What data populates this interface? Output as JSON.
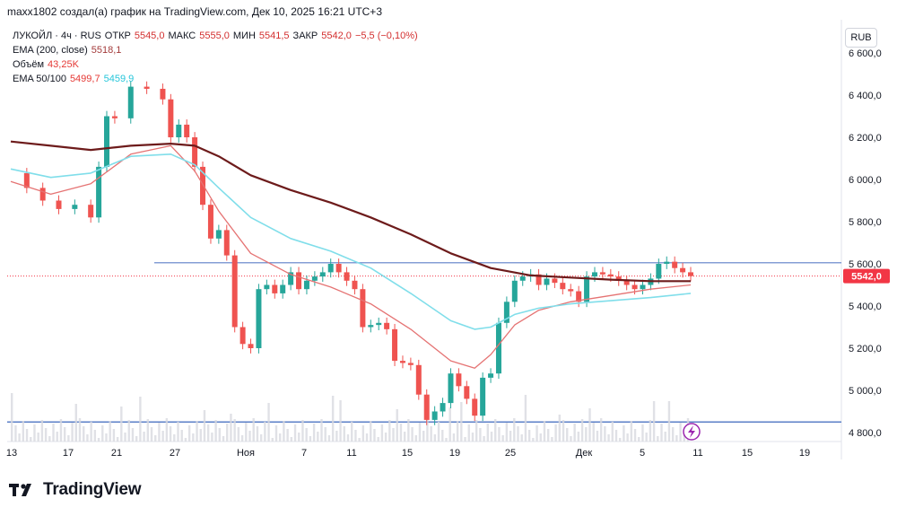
{
  "header": {
    "text": "maxx1802 создал(а) график на TradingView.com, Дек 10, 2025 16:21 UTC+3"
  },
  "legend": {
    "symbol": "ЛУКОЙЛ · 4ч · RUS",
    "open_label": "ОТКР",
    "open_value": "5545,0",
    "high_label": "МАКС",
    "high_value": "5555,0",
    "low_label": "МИН",
    "low_value": "5541,5",
    "close_label": "ЗАКР",
    "close_value": "5542,0",
    "change": "−5,5 (−0,10%)",
    "ema200_label": "EMA (200, close)",
    "ema200_value": "5518,1",
    "volume_label": "Объём",
    "volume_value": "43,25K",
    "ema50_100_label": "EMA 50/100",
    "ema50_value": "5499,7",
    "ema100_value": "5459,9"
  },
  "currency_button": "RUB",
  "last_price_label": "5542,0",
  "logo_text": "TradingView",
  "colors": {
    "up": "#26a69a",
    "down": "#ef5350",
    "ema200": "#6d1b1b",
    "ema50": "#e57373",
    "ema100": "#80deea",
    "hline": "#5b7fc7",
    "last_price": "#f23645"
  },
  "chart_data": {
    "type": "line",
    "y_ticks": [
      "6 600,0",
      "6 400,0",
      "6 200,0",
      "6 000,0",
      "5 800,0",
      "5 600,0",
      "5 400,0",
      "5 200,0",
      "5 000,0",
      "4 800,0"
    ],
    "y_tick_values": [
      6600,
      6400,
      6200,
      6000,
      5800,
      5600,
      5400,
      5200,
      5000,
      4800
    ],
    "ylim": [
      4790,
      6650
    ],
    "x_ticks": [
      "13",
      "17",
      "21",
      "27",
      "Ноя",
      "7",
      "11",
      "15",
      "19",
      "25",
      "Дек",
      "5",
      "11",
      "15",
      "19"
    ],
    "horizontal_levels": [
      5605,
      4850
    ],
    "last_price": 5542,
    "series": [
      {
        "name": "ЛУКОЙЛ",
        "role": "price",
        "points": [
          [
            0,
            6030
          ],
          [
            2,
            5960
          ],
          [
            4,
            5900
          ],
          [
            6,
            5860
          ],
          [
            8,
            5880
          ],
          [
            10,
            5820
          ],
          [
            11,
            6060
          ],
          [
            12,
            6300
          ],
          [
            13,
            6290
          ],
          [
            15,
            6440
          ],
          [
            17,
            6430
          ],
          [
            19,
            6380
          ],
          [
            20,
            6200
          ],
          [
            21,
            6260
          ],
          [
            22,
            6200
          ],
          [
            23,
            6060
          ],
          [
            24,
            5880
          ],
          [
            25,
            5720
          ],
          [
            26,
            5760
          ],
          [
            27,
            5640
          ],
          [
            28,
            5300
          ],
          [
            29,
            5220
          ],
          [
            30,
            5200
          ],
          [
            31,
            5480
          ],
          [
            32,
            5500
          ],
          [
            33,
            5460
          ],
          [
            34,
            5500
          ],
          [
            35,
            5560
          ],
          [
            36,
            5480
          ],
          [
            37,
            5520
          ],
          [
            38,
            5540
          ],
          [
            39,
            5560
          ],
          [
            40,
            5600
          ],
          [
            41,
            5560
          ],
          [
            42,
            5520
          ],
          [
            43,
            5480
          ],
          [
            44,
            5300
          ],
          [
            45,
            5310
          ],
          [
            46,
            5320
          ],
          [
            47,
            5290
          ],
          [
            48,
            5140
          ],
          [
            49,
            5130
          ],
          [
            50,
            5120
          ],
          [
            51,
            4980
          ],
          [
            52,
            4860
          ],
          [
            53,
            4900
          ],
          [
            54,
            4940
          ],
          [
            55,
            5080
          ],
          [
            56,
            5020
          ],
          [
            57,
            4960
          ],
          [
            58,
            4880
          ],
          [
            59,
            5060
          ],
          [
            60,
            5080
          ],
          [
            61,
            5320
          ],
          [
            62,
            5420
          ],
          [
            63,
            5520
          ],
          [
            64,
            5540
          ],
          [
            65,
            5550
          ],
          [
            66,
            5500
          ],
          [
            67,
            5530
          ],
          [
            68,
            5510
          ],
          [
            69,
            5480
          ],
          [
            70,
            5470
          ],
          [
            71,
            5420
          ],
          [
            72,
            5540
          ],
          [
            73,
            5560
          ],
          [
            74,
            5550
          ],
          [
            75,
            5540
          ],
          [
            76,
            5520
          ],
          [
            77,
            5500
          ],
          [
            78,
            5480
          ],
          [
            79,
            5500
          ],
          [
            80,
            5530
          ],
          [
            81,
            5600
          ],
          [
            82,
            5610
          ],
          [
            83,
            5580
          ],
          [
            84,
            5560
          ],
          [
            85,
            5542
          ]
        ]
      },
      {
        "name": "EMA (200, close)",
        "points": [
          [
            0,
            6180
          ],
          [
            5,
            6160
          ],
          [
            10,
            6140
          ],
          [
            15,
            6160
          ],
          [
            20,
            6170
          ],
          [
            23,
            6160
          ],
          [
            26,
            6110
          ],
          [
            30,
            6020
          ],
          [
            35,
            5950
          ],
          [
            40,
            5890
          ],
          [
            45,
            5820
          ],
          [
            50,
            5740
          ],
          [
            55,
            5650
          ],
          [
            60,
            5580
          ],
          [
            65,
            5545
          ],
          [
            70,
            5535
          ],
          [
            75,
            5525
          ],
          [
            80,
            5518
          ],
          [
            85,
            5518
          ]
        ]
      },
      {
        "name": "EMA 50",
        "points": [
          [
            0,
            5990
          ],
          [
            5,
            5930
          ],
          [
            10,
            5980
          ],
          [
            15,
            6120
          ],
          [
            20,
            6160
          ],
          [
            23,
            6040
          ],
          [
            26,
            5850
          ],
          [
            30,
            5650
          ],
          [
            35,
            5550
          ],
          [
            40,
            5490
          ],
          [
            45,
            5410
          ],
          [
            50,
            5290
          ],
          [
            55,
            5140
          ],
          [
            58,
            5105
          ],
          [
            60,
            5170
          ],
          [
            63,
            5310
          ],
          [
            66,
            5380
          ],
          [
            70,
            5420
          ],
          [
            75,
            5450
          ],
          [
            80,
            5480
          ],
          [
            85,
            5500
          ]
        ]
      },
      {
        "name": "EMA 100",
        "points": [
          [
            0,
            6050
          ],
          [
            5,
            6010
          ],
          [
            10,
            6030
          ],
          [
            15,
            6110
          ],
          [
            20,
            6120
          ],
          [
            23,
            6070
          ],
          [
            26,
            5960
          ],
          [
            30,
            5820
          ],
          [
            35,
            5720
          ],
          [
            40,
            5660
          ],
          [
            45,
            5580
          ],
          [
            50,
            5460
          ],
          [
            55,
            5330
          ],
          [
            58,
            5290
          ],
          [
            60,
            5300
          ],
          [
            63,
            5360
          ],
          [
            66,
            5390
          ],
          [
            70,
            5410
          ],
          [
            75,
            5425
          ],
          [
            80,
            5440
          ],
          [
            85,
            5460
          ]
        ]
      }
    ]
  }
}
